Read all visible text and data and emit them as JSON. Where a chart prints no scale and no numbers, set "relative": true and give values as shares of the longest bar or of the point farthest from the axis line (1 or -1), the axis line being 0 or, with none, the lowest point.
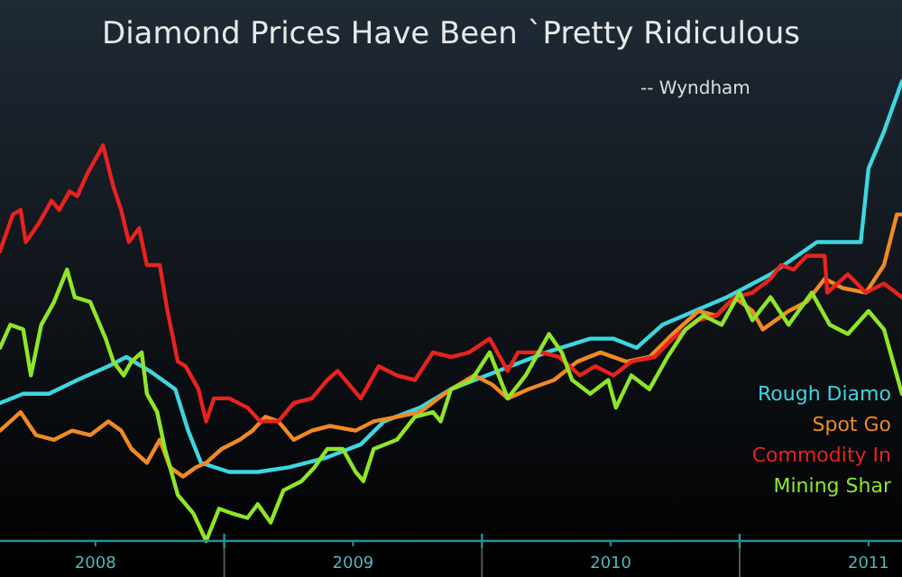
{
  "chart_data": {
    "type": "line",
    "title": "Diamond Prices Have Been `Pretty Ridiculous",
    "annotations": [
      "-- Wyndham"
    ],
    "relative": true,
    "legend": "bottom right",
    "grid": false,
    "marker": "none",
    "line_style": "solid",
    "xlim": [
      2008.13,
      2011.63
    ],
    "xticks": [
      {
        "value": 2008.5,
        "label": "2008"
      },
      {
        "value": 2009,
        "label": null
      },
      {
        "value": 2009.5,
        "label": "2009"
      },
      {
        "value": 2010,
        "label": null
      },
      {
        "value": 2010.5,
        "label": "2010"
      },
      {
        "value": 2011,
        "label": null
      },
      {
        "value": 2011.5,
        "label": "2011"
      }
    ],
    "series": [
      {
        "name": "Rough Diamo",
        "color": "#3dd6e0",
        "x": [
          2008.13,
          2008.22,
          2008.32,
          2008.43,
          2008.55,
          2008.62,
          2008.71,
          2008.81,
          2008.86,
          2008.91,
          2009.02,
          2009.13,
          2009.25,
          2009.39,
          2009.53,
          2009.62,
          2009.76,
          2009.88,
          2010.11,
          2010.25,
          2010.42,
          2010.51,
          2010.6,
          2010.7,
          2010.95,
          2011.12,
          2011.3,
          2011.47,
          2011.5,
          2011.56,
          2011.63
        ],
        "values": [
          0.3,
          0.32,
          0.32,
          0.35,
          0.38,
          0.4,
          0.37,
          0.33,
          0.24,
          0.17,
          0.15,
          0.15,
          0.16,
          0.18,
          0.21,
          0.26,
          0.29,
          0.33,
          0.38,
          0.41,
          0.44,
          0.44,
          0.42,
          0.47,
          0.53,
          0.58,
          0.65,
          0.65,
          0.81,
          0.89,
          1
        ]
      },
      {
        "name": "Spot Go",
        "color": "#f08a24",
        "x": [
          2008.13,
          2008.21,
          2008.27,
          2008.34,
          2008.41,
          2008.48,
          2008.55,
          2008.6,
          2008.64,
          2008.7,
          2008.75,
          2008.79,
          2008.84,
          2008.89,
          2008.93,
          2008.99,
          2009.06,
          2009.11,
          2009.16,
          2009.21,
          2009.27,
          2009.34,
          2009.41,
          2009.51,
          2009.58,
          2009.67,
          2009.76,
          2009.83,
          2009.88,
          2009.97,
          2010.04,
          2010.1,
          2010.18,
          2010.28,
          2010.37,
          2010.46,
          2010.56,
          2010.65,
          2010.74,
          2010.84,
          2010.91,
          2010.98,
          2011.05,
          2011.09,
          2011.19,
          2011.26,
          2011.33,
          2011.4,
          2011.49,
          2011.56,
          2011.61,
          2011.63
        ],
        "values": [
          0.24,
          0.28,
          0.23,
          0.22,
          0.24,
          0.23,
          0.26,
          0.24,
          0.2,
          0.17,
          0.22,
          0.16,
          0.14,
          0.16,
          0.17,
          0.2,
          0.22,
          0.24,
          0.27,
          0.26,
          0.22,
          0.24,
          0.25,
          0.24,
          0.26,
          0.27,
          0.28,
          0.31,
          0.33,
          0.36,
          0.34,
          0.31,
          0.33,
          0.35,
          0.39,
          0.41,
          0.39,
          0.4,
          0.45,
          0.5,
          0.49,
          0.53,
          0.5,
          0.46,
          0.5,
          0.52,
          0.57,
          0.55,
          0.54,
          0.6,
          0.71,
          0.71
        ]
      },
      {
        "name": "Commodity In",
        "color": "#e8231e",
        "x": [
          2008.13,
          2008.18,
          2008.21,
          2008.23,
          2008.28,
          2008.33,
          2008.36,
          2008.4,
          2008.43,
          2008.47,
          2008.53,
          2008.57,
          2008.6,
          2008.63,
          2008.67,
          2008.7,
          2008.75,
          2008.78,
          2008.82,
          2008.85,
          2008.9,
          2008.93,
          2008.96,
          2009.02,
          2009.09,
          2009.14,
          2009.21,
          2009.27,
          2009.34,
          2009.4,
          2009.44,
          2009.53,
          2009.6,
          2009.67,
          2009.74,
          2009.81,
          2009.88,
          2009.95,
          2010.03,
          2010.1,
          2010.14,
          2010.23,
          2010.3,
          2010.38,
          2010.44,
          2010.51,
          2010.58,
          2010.67,
          2010.74,
          2010.84,
          2010.91,
          2010.98,
          2011.05,
          2011.12,
          2011.16,
          2011.21,
          2011.26,
          2011.33,
          2011.34,
          2011.42,
          2011.49,
          2011.56,
          2011.63
        ],
        "values": [
          0.63,
          0.71,
          0.72,
          0.65,
          0.69,
          0.74,
          0.72,
          0.76,
          0.75,
          0.8,
          0.86,
          0.77,
          0.72,
          0.65,
          0.68,
          0.6,
          0.6,
          0.5,
          0.39,
          0.38,
          0.33,
          0.26,
          0.31,
          0.31,
          0.29,
          0.26,
          0.26,
          0.3,
          0.31,
          0.35,
          0.37,
          0.31,
          0.38,
          0.36,
          0.35,
          0.41,
          0.4,
          0.41,
          0.44,
          0.37,
          0.41,
          0.41,
          0.4,
          0.36,
          0.38,
          0.36,
          0.39,
          0.4,
          0.44,
          0.48,
          0.49,
          0.53,
          0.54,
          0.57,
          0.6,
          0.59,
          0.62,
          0.62,
          0.54,
          0.58,
          0.54,
          0.56,
          0.53
        ]
      },
      {
        "name": "Mining Shar",
        "color": "#8ee629",
        "x": [
          2008.13,
          2008.17,
          2008.22,
          2008.25,
          2008.29,
          2008.34,
          2008.39,
          2008.42,
          2008.48,
          2008.54,
          2008.57,
          2008.61,
          2008.64,
          2008.68,
          2008.7,
          2008.74,
          2008.77,
          2008.82,
          2008.88,
          2008.93,
          2008.98,
          2009.03,
          2009.09,
          2009.13,
          2009.18,
          2009.23,
          2009.3,
          2009.35,
          2009.4,
          2009.46,
          2009.51,
          2009.54,
          2009.58,
          2009.67,
          2009.74,
          2009.81,
          2009.84,
          2009.88,
          2009.96,
          2010.03,
          2010.1,
          2010.17,
          2010.26,
          2010.31,
          2010.35,
          2010.42,
          2010.49,
          2010.52,
          2010.58,
          2010.65,
          2010.72,
          2010.79,
          2010.86,
          2010.93,
          2011.0,
          2011.05,
          2011.12,
          2011.19,
          2011.28,
          2011.35,
          2011.42,
          2011.5,
          2011.56,
          2011.61,
          2011.63
        ],
        "values": [
          0.42,
          0.47,
          0.46,
          0.36,
          0.47,
          0.52,
          0.59,
          0.53,
          0.52,
          0.44,
          0.39,
          0.36,
          0.39,
          0.41,
          0.32,
          0.28,
          0.2,
          0.1,
          0.06,
          0,
          0.07,
          0.06,
          0.05,
          0.08,
          0.04,
          0.11,
          0.13,
          0.16,
          0.2,
          0.2,
          0.15,
          0.13,
          0.2,
          0.22,
          0.27,
          0.28,
          0.26,
          0.33,
          0.35,
          0.41,
          0.31,
          0.36,
          0.45,
          0.41,
          0.35,
          0.32,
          0.35,
          0.29,
          0.36,
          0.33,
          0.4,
          0.46,
          0.49,
          0.47,
          0.54,
          0.48,
          0.53,
          0.47,
          0.54,
          0.47,
          0.45,
          0.5,
          0.46,
          0.36,
          0.32
        ]
      }
    ]
  }
}
